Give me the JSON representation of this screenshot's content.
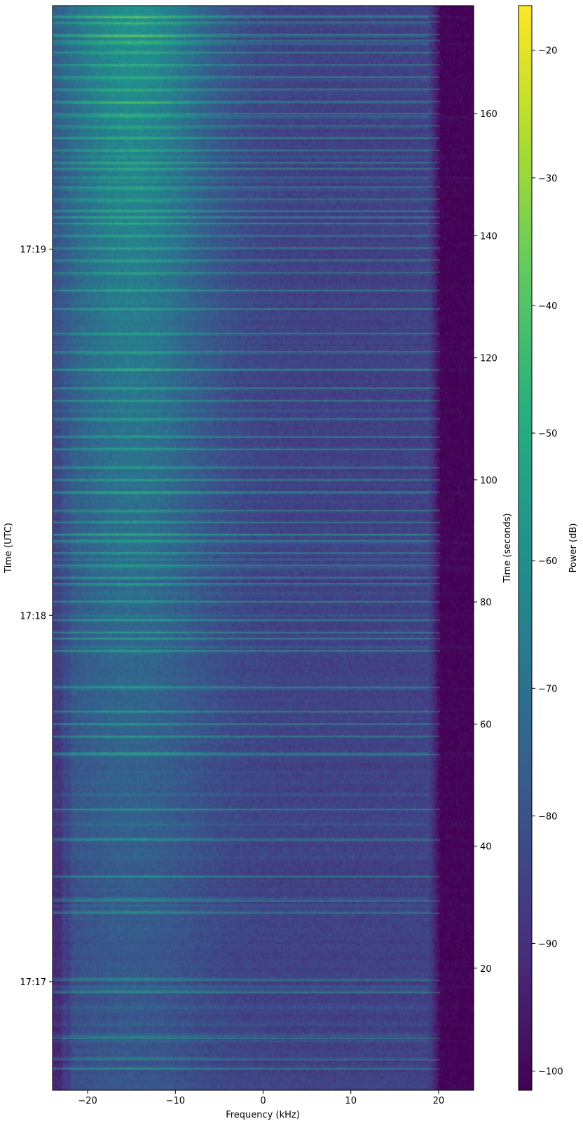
{
  "chart_data": {
    "type": "heatmap",
    "title": "",
    "xlabel": "Frequency (kHz)",
    "ylabel_left": "Time (UTC)",
    "ylabel_right": "Time (seconds)",
    "colorbar_label": "Power (dB)",
    "colormap": "viridis",
    "xlim": [
      -24,
      24
    ],
    "ylim_seconds": [
      0,
      177.7
    ],
    "color_range_db": [
      -101.5,
      -16.5
    ],
    "x_ticks": [
      -20,
      -10,
      0,
      10,
      20
    ],
    "x_tick_labels": [
      "−20",
      "−10",
      "0",
      "10",
      "20"
    ],
    "y_right_ticks": [
      20,
      40,
      60,
      80,
      100,
      120,
      140,
      160
    ],
    "y_right_tick_labels": [
      "20",
      "40",
      "60",
      "80",
      "100",
      "120",
      "140",
      "160"
    ],
    "y_left_ticks_seconds": [
      17.8,
      77.8,
      137.8
    ],
    "y_left_tick_labels": [
      "17:17",
      "17:18",
      "17:19"
    ],
    "colorbar_ticks": [
      -100,
      -90,
      -80,
      -70,
      -60,
      -50,
      -40,
      -30,
      -20
    ],
    "colorbar_tick_labels": [
      "−100",
      "−90",
      "−80",
      "−70",
      "−60",
      "−50",
      "−40",
      "−30",
      "−20"
    ],
    "bright_band_times_seconds": [
      3.5,
      5,
      8.5,
      16,
      18,
      29,
      31,
      35,
      41,
      46,
      55,
      58,
      60,
      62,
      66,
      72,
      74,
      75,
      77,
      80,
      83,
      84,
      86,
      88,
      90,
      91,
      93,
      95,
      98,
      100,
      102,
      105,
      107,
      110,
      113,
      115,
      118,
      121,
      124,
      128,
      131,
      134,
      136,
      138,
      140,
      142,
      143,
      144,
      146,
      148,
      151,
      152,
      154,
      156,
      158,
      160,
      162,
      164,
      166,
      168,
      170,
      172,
      173,
      175,
      176
    ]
  }
}
